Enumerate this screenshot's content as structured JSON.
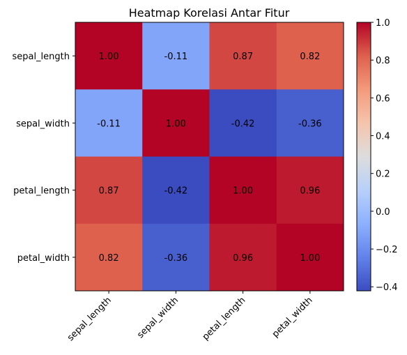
{
  "chart_data": {
    "type": "heatmap",
    "title": "Heatmap Korelasi Antar Fitur",
    "rows": [
      "sepal_length",
      "sepal_width",
      "petal_length",
      "petal_width"
    ],
    "columns": [
      "sepal_length",
      "sepal_width",
      "petal_length",
      "petal_width"
    ],
    "values": [
      [
        1.0,
        -0.11,
        0.87,
        0.82
      ],
      [
        -0.11,
        1.0,
        -0.42,
        -0.36
      ],
      [
        0.87,
        -0.42,
        1.0,
        0.96
      ],
      [
        0.82,
        -0.36,
        0.96,
        1.0
      ]
    ],
    "cell_labels": [
      [
        "1.00",
        "-0.11",
        "0.87",
        "0.82"
      ],
      [
        "-0.11",
        "1.00",
        "-0.42",
        "-0.36"
      ],
      [
        "0.87",
        "-0.42",
        "1.00",
        "0.96"
      ],
      [
        "0.82",
        "-0.36",
        "0.96",
        "1.00"
      ]
    ],
    "colormap": "coolwarm",
    "colorbar": {
      "range": [
        -0.4213,
        1.0
      ],
      "ticks": [
        1.0,
        0.8,
        0.6,
        0.4,
        0.2,
        0.0,
        -0.2,
        -0.4
      ],
      "tick_labels": [
        "1.0",
        "0.8",
        "0.6",
        "0.4",
        "0.2",
        "0.0",
        "−0.2",
        "−0.4"
      ]
    },
    "xlabel": "",
    "ylabel": "",
    "x_tick_rotation_deg": 45
  },
  "colors": {
    "label_text": "#000000",
    "axis": "#000000",
    "background": "#ffffff"
  }
}
